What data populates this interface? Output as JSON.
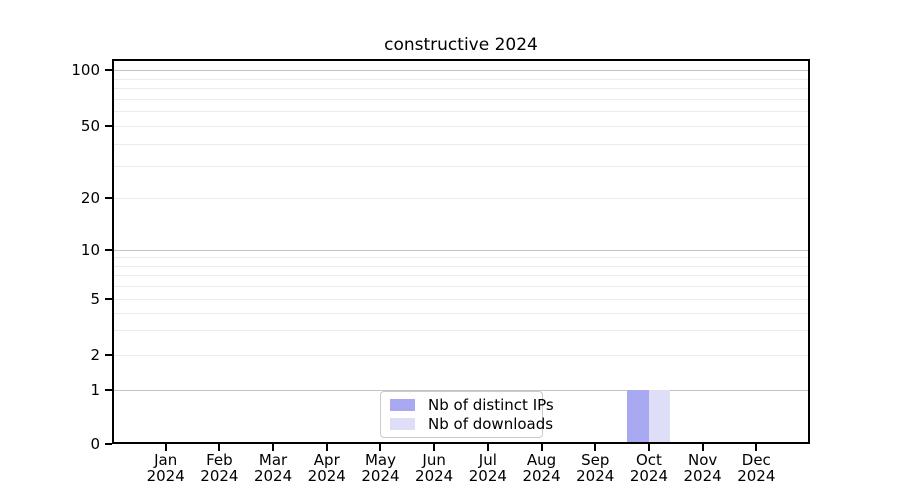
{
  "chart_data": {
    "type": "bar",
    "title": "constructive 2024",
    "categories": [
      "Jan 2024",
      "Feb 2024",
      "Mar 2024",
      "Apr 2024",
      "May 2024",
      "Jun 2024",
      "Jul 2024",
      "Aug 2024",
      "Sep 2024",
      "Oct 2024",
      "Nov 2024",
      "Dec 2024"
    ],
    "series": [
      {
        "name": "Nb of distinct IPs",
        "color": "#a9a9f2",
        "values": [
          0,
          0,
          0,
          0,
          0,
          0,
          0,
          0,
          0,
          1,
          0,
          0
        ]
      },
      {
        "name": "Nb of downloads",
        "color": "#dedef8",
        "values": [
          0,
          0,
          0,
          0,
          0,
          0,
          0,
          0,
          0,
          1,
          0,
          0
        ]
      }
    ],
    "xlabel": "",
    "ylabel": "",
    "yticks": [
      "100",
      "50",
      "20",
      "10",
      "5",
      "2",
      "1",
      "0"
    ],
    "ylim": [
      0,
      140
    ],
    "yscale": "log above 1, linear 0-1",
    "grid": "horizontal, major and minor",
    "legend_position": "lower center inside plot"
  },
  "colors": {
    "background": "#ffffff",
    "spine": "#000000",
    "major_grid": "#c3c3c3",
    "minor_grid": "#ebebeb",
    "legend_border": "#cbcbcb"
  }
}
